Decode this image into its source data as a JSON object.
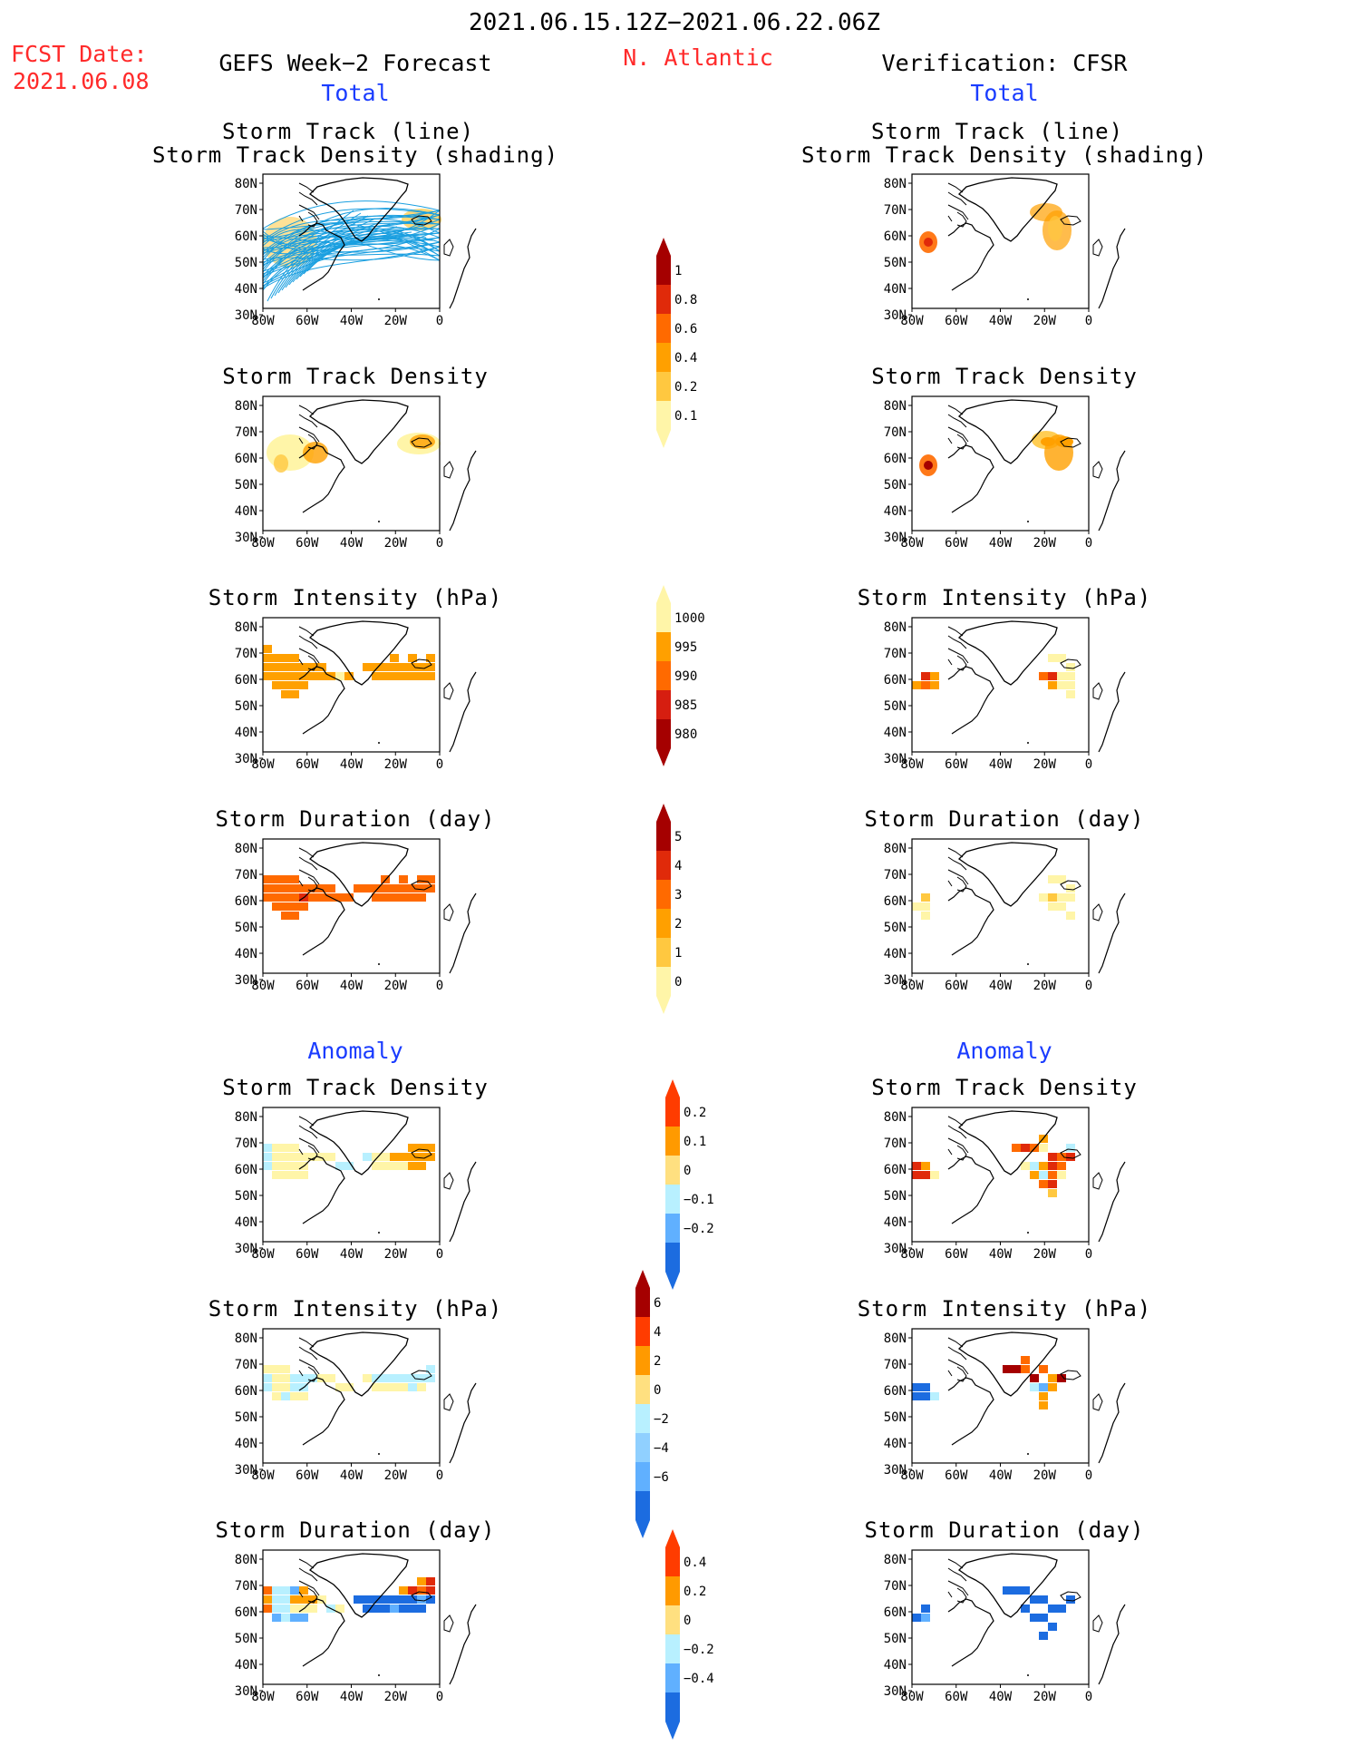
{
  "header": {
    "date_range": "2021.06.15.12Z−2021.06.22.06Z",
    "fcst_label": "FCST Date:",
    "fcst_date": "2021.06.08",
    "region": "N. Atlantic",
    "left_title": "GEFS Week−2 Forecast",
    "right_title": "Verification: CFSR"
  },
  "sections": {
    "total": "Total",
    "anomaly": "Anomaly"
  },
  "panel_titles": {
    "track_line": "Storm Track (line)",
    "track_shading": "Storm Track Density (shading)",
    "density": "Storm Track Density",
    "intensity": "Storm Intensity (hPa)",
    "duration": "Storm Duration (day)"
  },
  "axes": {
    "lat_labels": [
      "80N",
      "70N",
      "60N",
      "50N",
      "40N",
      "30N"
    ],
    "lon_labels": [
      "80W",
      "60W",
      "40W",
      "20W",
      "0"
    ]
  },
  "colorbars": {
    "density_total": {
      "labels": [
        "1",
        "0.8",
        "0.6",
        "0.4",
        "0.2",
        "0.1"
      ],
      "colors": [
        "#a50000",
        "#e02a0a",
        "#ff6a00",
        "#ffa000",
        "#ffc840",
        "#fff5a8"
      ]
    },
    "intensity_total": {
      "labels": [
        "1000",
        "995",
        "990",
        "985",
        "980"
      ],
      "colors": [
        "#fff5a8",
        "#ffa000",
        "#ff6a00",
        "#d61e10",
        "#a50000"
      ]
    },
    "duration_total": {
      "labels": [
        "5",
        "4",
        "3",
        "2",
        "1",
        "0"
      ],
      "colors": [
        "#a50000",
        "#e02a0a",
        "#ff6a00",
        "#ffa000",
        "#ffc840",
        "#fff5a8"
      ]
    },
    "density_anom": {
      "labels": [
        "0.2",
        "0.1",
        "0",
        "−0.1",
        "−0.2"
      ],
      "colors": [
        "#ff3c00",
        "#ff9a00",
        "#ffe080",
        "#b8f0ff",
        "#60b0ff",
        "#1c6ce0"
      ]
    },
    "intensity_anom": {
      "labels": [
        "6",
        "4",
        "2",
        "0",
        "−2",
        "−4",
        "−6"
      ],
      "colors": [
        "#a50000",
        "#ff3c00",
        "#ff9a00",
        "#ffe080",
        "#b8f0ff",
        "#90d0ff",
        "#60b0ff",
        "#1c6ce0"
      ]
    },
    "duration_anom": {
      "labels": [
        "0.4",
        "0.2",
        "0",
        "−0.2",
        "−0.4"
      ],
      "colors": [
        "#ff3c00",
        "#ff9a00",
        "#ffe080",
        "#b8f0ff",
        "#60b0ff",
        "#1c6ce0"
      ]
    }
  }
}
